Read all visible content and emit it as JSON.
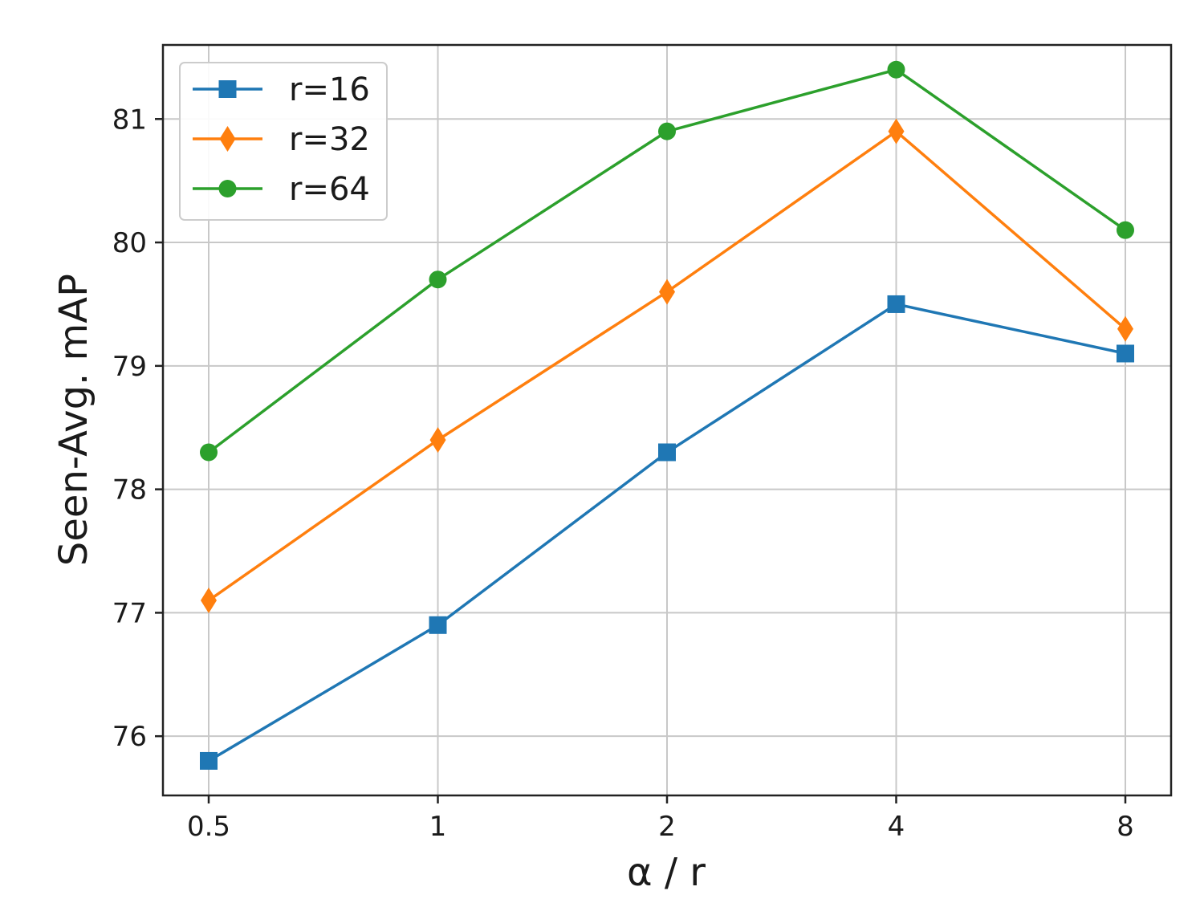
{
  "chart_data": {
    "type": "line",
    "title": "",
    "xlabel": "α / r",
    "ylabel": "Seen-Avg. mAP",
    "x_scale": "log2",
    "x": [
      0.5,
      1,
      2,
      4,
      8
    ],
    "x_tick_labels": [
      "0.5",
      "1",
      "2",
      "4",
      "8"
    ],
    "y_ticks": [
      76,
      77,
      78,
      79,
      80,
      81
    ],
    "y_tick_labels": [
      "76",
      "77",
      "78",
      "79",
      "80",
      "81"
    ],
    "ylim": [
      75.52,
      81.6
    ],
    "grid": true,
    "legend_position": "top-left",
    "series": [
      {
        "name": "r=16",
        "color": "#1f77b4",
        "marker": "square",
        "values": [
          75.8,
          76.9,
          78.3,
          79.5,
          79.1
        ]
      },
      {
        "name": "r=32",
        "color": "#ff7f0e",
        "marker": "diamond",
        "values": [
          77.1,
          78.4,
          79.6,
          80.9,
          79.3
        ]
      },
      {
        "name": "r=64",
        "color": "#2ca02c",
        "marker": "circle",
        "values": [
          78.3,
          79.7,
          80.9,
          81.4,
          80.1
        ]
      }
    ]
  }
}
